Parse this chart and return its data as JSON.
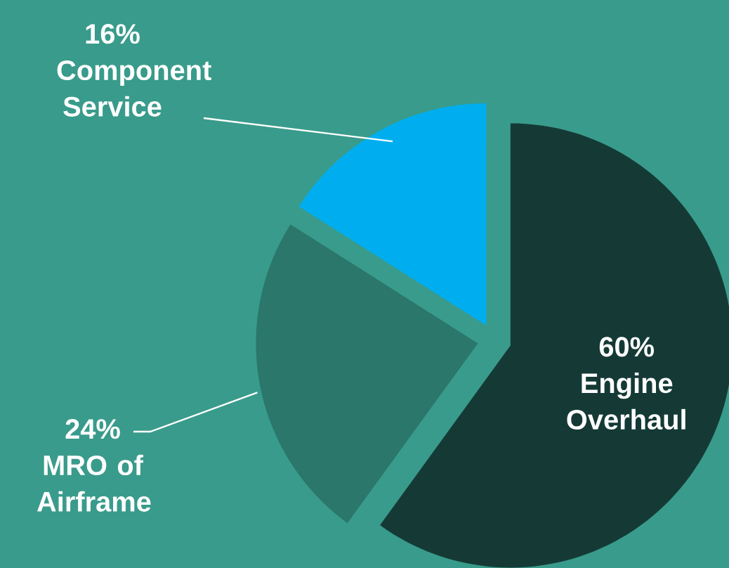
{
  "chart_data": {
    "type": "pie",
    "categories": [
      "Engine Overhaul",
      "MRO of Airframe",
      "Component Service"
    ],
    "values": [
      60,
      24,
      16
    ],
    "value_labels": [
      "60%",
      "24%",
      "16%"
    ],
    "colors": [
      "#153a36",
      "#2b776b",
      "#00aeef"
    ]
  }
}
